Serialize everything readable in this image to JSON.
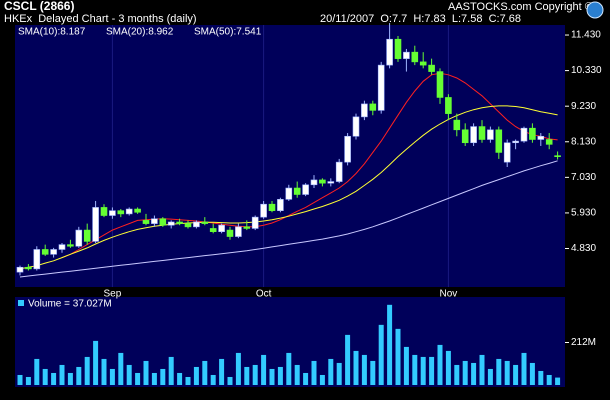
{
  "header": {
    "title": "CSCL (2866)",
    "subtitle": "HKEx  Delayed Chart - 3 months (daily)",
    "quote": "20/11/2007  O:7.7  H:7.83  L:7.58  C:7.68",
    "copyright": "AASTOCKS.com Copyright ©"
  },
  "chart_data": [
    {
      "type": "candlestick",
      "categories": [
        null,
        null,
        null,
        null,
        null,
        null,
        null,
        null,
        null,
        null,
        null,
        "Sep",
        null,
        null,
        null,
        null,
        null,
        null,
        null,
        null,
        null,
        null,
        null,
        null,
        null,
        null,
        null,
        null,
        null,
        "Oct",
        null,
        null,
        null,
        null,
        null,
        null,
        null,
        null,
        null,
        null,
        null,
        null,
        null,
        null,
        null,
        null,
        null,
        null,
        null,
        null,
        null,
        "Nov",
        null,
        null,
        null,
        null,
        null,
        null,
        null,
        null,
        null,
        null,
        null,
        null,
        null
      ],
      "open": [
        4.1,
        4.25,
        4.2,
        4.8,
        4.65,
        4.8,
        4.95,
        4.9,
        5.4,
        5.05,
        6.1,
        5.85,
        6.0,
        5.9,
        6.05,
        5.7,
        5.6,
        5.75,
        5.55,
        5.65,
        5.6,
        5.5,
        5.65,
        5.45,
        5.35,
        5.4,
        5.2,
        5.5,
        5.45,
        5.8,
        6.2,
        6.0,
        6.35,
        6.7,
        6.5,
        6.8,
        6.95,
        6.85,
        6.9,
        7.5,
        8.3,
        8.9,
        9.3,
        9.1,
        10.5,
        11.3,
        10.7,
        10.9,
        10.6,
        10.5,
        10.3,
        9.5,
        8.8,
        8.5,
        8.1,
        8.6,
        8.2,
        8.5,
        7.5,
        8.1,
        8.15,
        8.55,
        8.2,
        8.2,
        7.7
      ],
      "high": [
        4.3,
        4.35,
        4.9,
        4.95,
        4.85,
        5.0,
        5.1,
        5.5,
        5.6,
        6.3,
        6.2,
        6.1,
        6.05,
        6.1,
        6.1,
        5.9,
        5.85,
        5.8,
        5.7,
        5.75,
        5.7,
        5.7,
        5.8,
        5.6,
        5.6,
        5.5,
        5.6,
        5.7,
        5.85,
        6.3,
        6.3,
        6.4,
        6.8,
        6.9,
        6.85,
        7.1,
        7.0,
        7.0,
        7.6,
        8.4,
        9.0,
        9.4,
        9.4,
        10.6,
        11.8,
        11.4,
        11.0,
        11.1,
        10.9,
        10.7,
        10.4,
        9.6,
        9.0,
        8.7,
        8.7,
        8.8,
        8.6,
        8.6,
        8.2,
        8.2,
        8.6,
        8.7,
        8.4,
        8.4,
        7.83
      ],
      "low": [
        4.0,
        4.15,
        4.15,
        4.6,
        4.55,
        4.7,
        4.85,
        4.85,
        4.95,
        5.0,
        5.8,
        5.75,
        5.8,
        5.85,
        5.9,
        5.55,
        5.5,
        5.5,
        5.45,
        5.55,
        5.45,
        5.45,
        5.55,
        5.3,
        5.3,
        5.1,
        5.15,
        5.4,
        5.4,
        5.75,
        5.95,
        5.95,
        6.3,
        6.4,
        6.45,
        6.7,
        6.75,
        6.75,
        6.85,
        7.4,
        8.2,
        8.8,
        8.95,
        9.0,
        10.4,
        10.6,
        10.3,
        10.5,
        10.4,
        10.2,
        9.3,
        8.8,
        8.3,
        8.0,
        8.0,
        8.1,
        8.1,
        7.6,
        7.35,
        7.9,
        8.1,
        8.1,
        8.0,
        7.9,
        7.58
      ],
      "close": [
        4.25,
        4.2,
        4.8,
        4.65,
        4.8,
        4.95,
        4.9,
        5.4,
        5.05,
        6.1,
        5.85,
        6.0,
        5.9,
        6.05,
        5.95,
        5.6,
        5.75,
        5.55,
        5.65,
        5.6,
        5.5,
        5.65,
        5.6,
        5.35,
        5.55,
        5.2,
        5.5,
        5.45,
        5.8,
        6.2,
        6.0,
        6.35,
        6.7,
        6.5,
        6.8,
        6.95,
        6.85,
        6.9,
        7.5,
        8.3,
        8.9,
        9.3,
        9.1,
        10.5,
        11.3,
        10.7,
        10.9,
        10.6,
        10.5,
        10.3,
        9.5,
        9.0,
        8.5,
        8.1,
        8.6,
        8.2,
        8.5,
        7.8,
        8.1,
        8.15,
        8.55,
        8.2,
        8.3,
        8.05,
        7.68
      ],
      "up_color": "#ffffff",
      "down_color": "#66ff33",
      "ylim": [
        3.64,
        11.74
      ],
      "yticks": [
        {
          "value": 4.83,
          "label": "4.830"
        },
        {
          "value": 5.93,
          "label": "5.930"
        },
        {
          "value": 7.03,
          "label": "7.030"
        },
        {
          "value": 8.13,
          "label": "8.130"
        },
        {
          "value": 9.23,
          "label": "9.230"
        },
        {
          "value": 10.33,
          "label": "10.330"
        },
        {
          "value": 11.43,
          "label": "11.430"
        }
      ],
      "legend": "top-left",
      "series": [
        {
          "name": "SMA(10):8.187",
          "color": "#ff2020",
          "values": [
            null,
            null,
            null,
            null,
            null,
            4.55,
            4.65,
            4.8,
            4.95,
            5.1,
            5.25,
            5.4,
            5.5,
            5.6,
            5.7,
            5.72,
            5.74,
            5.75,
            5.74,
            5.72,
            5.7,
            5.68,
            5.65,
            5.62,
            5.58,
            5.55,
            5.52,
            5.5,
            5.5,
            5.55,
            5.62,
            5.72,
            5.85,
            5.98,
            6.1,
            6.25,
            6.4,
            6.55,
            6.7,
            6.9,
            7.15,
            7.45,
            7.8,
            8.15,
            8.55,
            8.95,
            9.35,
            9.7,
            10.0,
            10.2,
            10.25,
            10.2,
            10.1,
            9.95,
            9.75,
            9.55,
            9.3,
            9.05,
            8.8,
            8.6,
            8.45,
            8.35,
            8.3,
            8.22,
            8.187
          ]
        },
        {
          "name": "SMA(20):8.962",
          "color": "#ffff33",
          "values": [
            4.2,
            4.25,
            4.3,
            4.38,
            4.45,
            4.55,
            4.65,
            4.75,
            4.85,
            4.97,
            5.08,
            5.18,
            5.27,
            5.35,
            5.42,
            5.47,
            5.52,
            5.55,
            5.58,
            5.6,
            5.62,
            5.63,
            5.64,
            5.64,
            5.63,
            5.62,
            5.62,
            5.63,
            5.65,
            5.68,
            5.72,
            5.77,
            5.83,
            5.9,
            5.97,
            6.05,
            6.13,
            6.22,
            6.32,
            6.45,
            6.6,
            6.78,
            6.97,
            7.18,
            7.42,
            7.67,
            7.9,
            8.12,
            8.33,
            8.52,
            8.68,
            8.82,
            8.94,
            9.04,
            9.12,
            9.18,
            9.22,
            9.24,
            9.24,
            9.22,
            9.18,
            9.12,
            9.06,
            9.01,
            8.962
          ]
        },
        {
          "name": "SMA(50):7.541",
          "color": "#c8c8ff",
          "values": [
            3.95,
            3.98,
            4.01,
            4.04,
            4.07,
            4.1,
            4.13,
            4.16,
            4.19,
            4.22,
            4.25,
            4.28,
            4.31,
            4.34,
            4.37,
            4.4,
            4.43,
            4.46,
            4.49,
            4.52,
            4.55,
            4.58,
            4.61,
            4.64,
            4.67,
            4.7,
            4.73,
            4.76,
            4.8,
            4.84,
            4.88,
            4.92,
            4.96,
            5.0,
            5.04,
            5.08,
            5.12,
            5.17,
            5.22,
            5.28,
            5.35,
            5.42,
            5.5,
            5.59,
            5.68,
            5.78,
            5.88,
            5.98,
            6.08,
            6.18,
            6.28,
            6.38,
            6.48,
            6.58,
            6.68,
            6.78,
            6.87,
            6.96,
            7.05,
            7.14,
            7.23,
            7.31,
            7.39,
            7.46,
            7.541
          ]
        }
      ]
    },
    {
      "type": "bar",
      "title": "Volume = 37.027M",
      "color": "#33ccff",
      "values": [
        50,
        40,
        130,
        80,
        60,
        100,
        60,
        90,
        140,
        220,
        130,
        80,
        160,
        100,
        60,
        120,
        60,
        80,
        140,
        60,
        40,
        90,
        120,
        50,
        130,
        40,
        160,
        90,
        100,
        150,
        80,
        90,
        160,
        100,
        60,
        120,
        50,
        130,
        110,
        250,
        170,
        150,
        120,
        300,
        400,
        280,
        190,
        150,
        140,
        140,
        200,
        170,
        100,
        120,
        110,
        150,
        80,
        130,
        120,
        100,
        160,
        110,
        70,
        50,
        37.027
      ],
      "ylim": [
        0,
        439
      ],
      "yticks": [
        {
          "value": 212,
          "label": "212M"
        }
      ]
    }
  ]
}
